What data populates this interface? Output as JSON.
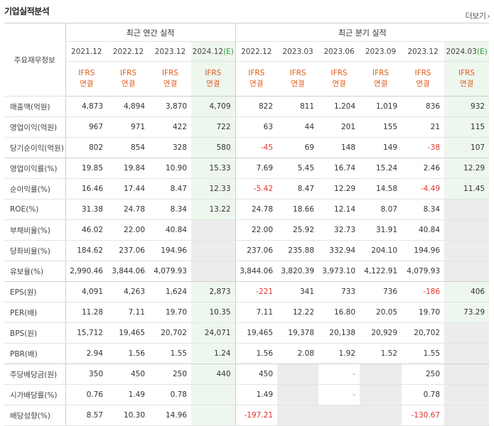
{
  "title": "기업실적분석",
  "more": "더보기",
  "header_label": "주요재무정보",
  "annual_group": "최근 연간 실적",
  "quarter_group": "최근 분기 실적",
  "annual_periods": [
    "2021.12",
    "2022.12",
    "2023.12",
    "2024.12"
  ],
  "annual_est_mark": "(E)",
  "quarter_periods": [
    "2022.12",
    "2023.03",
    "2023.06",
    "2023.09",
    "2023.12",
    "2024.03"
  ],
  "quarter_est_mark": "(E)",
  "ifrs_top": "IFRS",
  "ifrs_bottom": "연결",
  "rows": [
    {
      "label": "매출액(억원)",
      "values": [
        "4,873",
        "4,894",
        "3,870",
        "4,709",
        "822",
        "811",
        "1,204",
        "1,019",
        "836",
        "932"
      ]
    },
    {
      "label": "영업이익(억원)",
      "values": [
        "967",
        "971",
        "422",
        "722",
        "63",
        "44",
        "201",
        "155",
        "21",
        "115"
      ]
    },
    {
      "label": "당기순이익(억원)",
      "values": [
        "802",
        "854",
        "328",
        "580",
        "-45",
        "69",
        "148",
        "149",
        "-38",
        "107"
      ]
    },
    {
      "label": "영업이익률(%)",
      "values": [
        "19.85",
        "19.84",
        "10.90",
        "15.33",
        "7.69",
        "5.45",
        "16.74",
        "15.24",
        "2.46",
        "12.29"
      ]
    },
    {
      "label": "순이익률(%)",
      "values": [
        "16.46",
        "17.44",
        "8.47",
        "12.33",
        "-5.42",
        "8.47",
        "12.29",
        "14.58",
        "-4.49",
        "11.45"
      ]
    },
    {
      "label": "ROE(%)",
      "values": [
        "31.38",
        "24.78",
        "8.34",
        "13.22",
        "24.78",
        "18.66",
        "12.14",
        "8.07",
        "8.34",
        ""
      ]
    },
    {
      "label": "부채비율(%)",
      "values": [
        "46.02",
        "22.00",
        "40.84",
        "",
        "22.00",
        "25.92",
        "32.73",
        "31.91",
        "40.84",
        ""
      ]
    },
    {
      "label": "당좌비율(%)",
      "values": [
        "184.62",
        "237.06",
        "194.96",
        "",
        "237.06",
        "235.88",
        "332.94",
        "204.10",
        "194.96",
        ""
      ]
    },
    {
      "label": "유보율(%)",
      "values": [
        "2,990.46",
        "3,844.06",
        "4,079.93",
        "",
        "3,844.06",
        "3,820.39",
        "3,973.10",
        "4,122.91",
        "4,079.93",
        ""
      ]
    },
    {
      "label": "EPS(원)",
      "values": [
        "4,091",
        "4,263",
        "1,624",
        "2,873",
        "-221",
        "341",
        "733",
        "736",
        "-186",
        "406"
      ]
    },
    {
      "label": "PER(배)",
      "values": [
        "11.28",
        "7.11",
        "19.70",
        "10.35",
        "7.11",
        "12.22",
        "16.80",
        "20.05",
        "19.70",
        "73.29"
      ]
    },
    {
      "label": "BPS(원)",
      "values": [
        "15,712",
        "19,465",
        "20,702",
        "24,071",
        "19,465",
        "19,378",
        "20,138",
        "20,929",
        "20,702",
        ""
      ]
    },
    {
      "label": "PBR(배)",
      "values": [
        "2.94",
        "1.56",
        "1.55",
        "1.24",
        "1.56",
        "2.08",
        "1.92",
        "1.52",
        "1.55",
        ""
      ]
    },
    {
      "label": "주당배당금(원)",
      "values": [
        "350",
        "450",
        "250",
        "440",
        "450",
        "",
        "-",
        "",
        "250",
        ""
      ]
    },
    {
      "label": "시가배당률(%)",
      "values": [
        "0.76",
        "1.49",
        "0.78",
        "",
        "1.49",
        "",
        "-",
        "",
        "0.78",
        ""
      ]
    },
    {
      "label": "배당성향(%)",
      "values": [
        "8.57",
        "10.30",
        "14.96",
        "",
        "-197.21",
        "",
        "",
        "",
        "-130.67",
        ""
      ]
    }
  ]
}
